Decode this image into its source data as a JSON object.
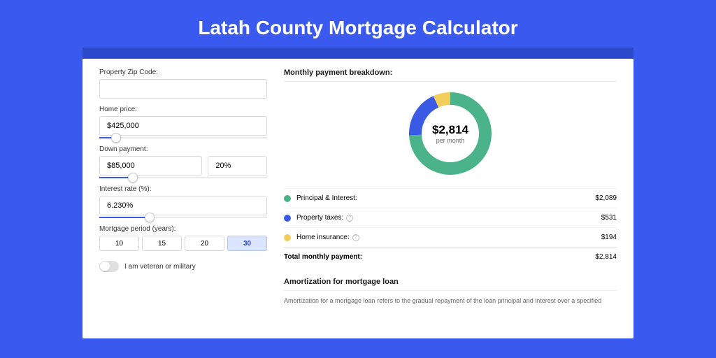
{
  "page": {
    "title": "Latah County Mortgage Calculator",
    "background_color": "#3959ef",
    "band_color": "#2a48c9"
  },
  "form": {
    "zip_label": "Property Zip Code:",
    "zip_value": "",
    "home_price_label": "Home price:",
    "home_price_value": "$425,000",
    "home_price_slider_pct": 10,
    "down_payment_label": "Down payment:",
    "down_payment_value": "$85,000",
    "down_payment_pct_value": "20%",
    "down_payment_slider_pct": 20,
    "interest_label": "Interest rate (%):",
    "interest_value": "6.230%",
    "interest_slider_pct": 30,
    "period_label": "Mortgage period (years):",
    "period_options": [
      "10",
      "15",
      "20",
      "30"
    ],
    "period_selected_index": 3,
    "toggle_label": "I am veteran or military",
    "toggle_on": false
  },
  "breakdown": {
    "title": "Monthly payment breakdown:",
    "donut": {
      "value_label": "$2,814",
      "sub_label": "per month",
      "slices": [
        {
          "name": "Principal & Interest",
          "value": 2089,
          "pct": 74.2,
          "color": "#4bb389"
        },
        {
          "name": "Property taxes",
          "value": 531,
          "pct": 18.9,
          "color": "#3b5be6"
        },
        {
          "name": "Home insurance",
          "value": 194,
          "pct": 6.9,
          "color": "#f3cd5b"
        }
      ],
      "thickness": 18
    },
    "rows": [
      {
        "label": "Principal & Interest:",
        "value": "$2,089",
        "color": "#4bb389",
        "info": false
      },
      {
        "label": "Property taxes:",
        "value": "$531",
        "color": "#3b5be6",
        "info": true
      },
      {
        "label": "Home insurance:",
        "value": "$194",
        "color": "#f3cd5b",
        "info": true
      }
    ],
    "total_label": "Total monthly payment:",
    "total_value": "$2,814"
  },
  "amortization": {
    "title": "Amortization for mortgage loan",
    "body": "Amortization for a mortgage loan refers to the gradual repayment of the loan principal and interest over a specified"
  }
}
